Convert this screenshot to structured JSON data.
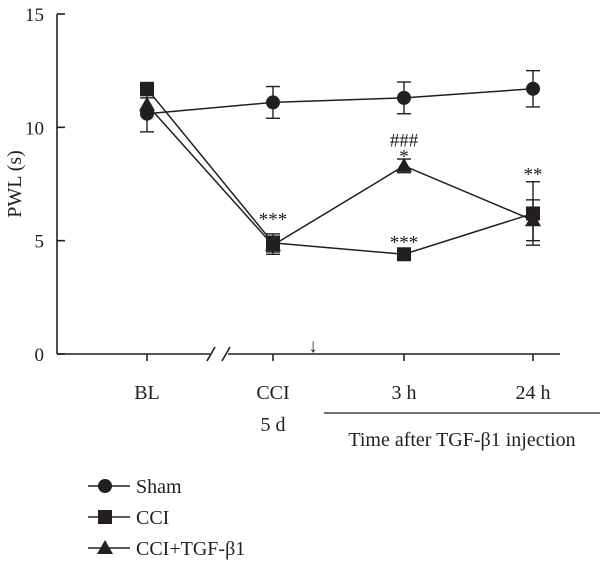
{
  "chart_data": {
    "type": "line",
    "xlabel": "",
    "ylabel": "PWL (s)",
    "ylim": [
      0,
      15
    ],
    "y_ticks": [
      "0",
      "5",
      "10",
      "15"
    ],
    "categories": [
      "BL",
      "CCI 5 d",
      "3 h",
      "24 h"
    ],
    "x_tick_labels": [
      {
        "line1": "BL",
        "line2": ""
      },
      {
        "line1": "CCI",
        "line2": "5 d"
      },
      {
        "line1": "3 h",
        "line2": ""
      },
      {
        "line1": "24 h",
        "line2": ""
      }
    ],
    "axis_break": "//",
    "injection_arrow": "↓",
    "time_bracket_label": "Time after TGF-β1 injection",
    "series": [
      {
        "name": "Sham",
        "marker": "circle",
        "values": [
          10.6,
          11.1,
          11.3,
          11.7
        ],
        "errors": [
          0.8,
          0.7,
          0.7,
          0.8
        ]
      },
      {
        "name": "CCI",
        "marker": "square",
        "values": [
          11.7,
          4.9,
          4.4,
          6.2
        ],
        "errors": [
          0.2,
          0.4,
          0.2,
          1.4
        ]
      },
      {
        "name": "CCI+TGF-β1",
        "marker": "triangle",
        "values": [
          11.0,
          4.8,
          8.3,
          5.9
        ],
        "errors": [
          0.3,
          0.4,
          0.3,
          0.9
        ]
      }
    ],
    "annotations": [
      {
        "category": 1,
        "text": "***",
        "y": 6.1
      },
      {
        "category": 2,
        "text": "###",
        "y": 9.6
      },
      {
        "category": 2,
        "text": "*",
        "y": 8.9
      },
      {
        "category": 2,
        "text": "***",
        "y": 5.1
      },
      {
        "category": 3,
        "text": "**",
        "y": 8.1
      }
    ],
    "legend": [
      {
        "label": "Sham",
        "marker": "circle"
      },
      {
        "label": "CCI",
        "marker": "square"
      },
      {
        "label": "CCI+TGF-β1",
        "marker": "triangle"
      }
    ],
    "colors": {
      "ink": "#231f20",
      "background": "#ffffff"
    },
    "grid": false
  }
}
